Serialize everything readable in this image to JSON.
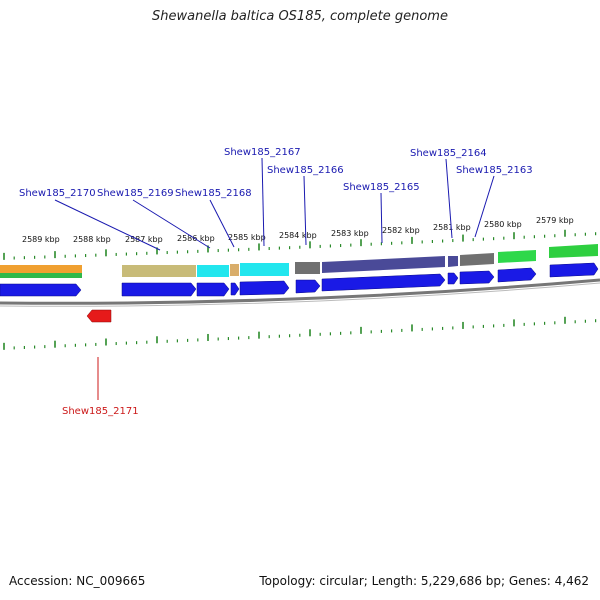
{
  "title": "Shewanella baltica OS185, complete genome",
  "accession_text": "Accession: NC_009665",
  "summary_text": "Topology: circular; Length: 5,229,686 bp; Genes: 4,462",
  "colors": {
    "cds": "#1a1ae6",
    "cds_reverse": "#e61a1a",
    "label_forward": "#1a1ab0",
    "label_reverse": "#cc1a1a",
    "tick": "#2a8a2a",
    "backbone": "#7a7a7a"
  },
  "axis_labels": [
    "2589 kbp",
    "2588 kbp",
    "2587 kbp",
    "2586 kbp",
    "2585 kbp",
    "2584 kbp",
    "2583 kbp",
    "2582 kbp",
    "2581 kbp",
    "2580 kbp",
    "2579 kbp"
  ],
  "gene_labels": [
    {
      "name": "Shew185_2170",
      "strand": "forward"
    },
    {
      "name": "Shew185_2169",
      "strand": "forward"
    },
    {
      "name": "Shew185_2168",
      "strand": "forward"
    },
    {
      "name": "Shew185_2167",
      "strand": "forward"
    },
    {
      "name": "Shew185_2166",
      "strand": "forward"
    },
    {
      "name": "Shew185_2165",
      "strand": "forward"
    },
    {
      "name": "Shew185_2164",
      "strand": "forward"
    },
    {
      "name": "Shew185_2163",
      "strand": "forward"
    },
    {
      "name": "Shew185_2171",
      "strand": "reverse"
    }
  ]
}
